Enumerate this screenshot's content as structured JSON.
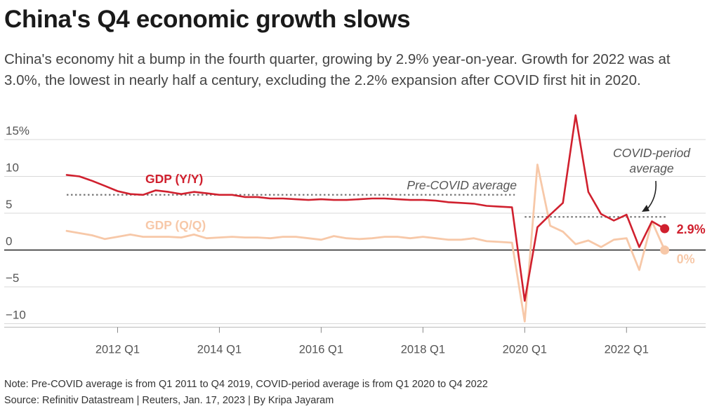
{
  "header": {
    "title": "China's Q4 economic growth slows",
    "subtitle": "China's economy hit a bump in the fourth quarter, growing by 2.9% year-on-year. Growth for 2022 was at 3.0%, the lowest in nearly half a century, excluding the 2.2% expansion after COVID first hit in 2020."
  },
  "footer": {
    "note": "Note: Pre-COVID average is from Q1 2011 to Q4 2019, COVID-period average is from Q1 2020 to Q4 2022",
    "source": "Source: Refinitiv Datastream | Reuters, Jan. 17, 2023 | By Kripa Jayaram"
  },
  "chart_data": {
    "type": "line",
    "colors": {
      "yy": "#d0202e",
      "qq": "#f7c8a8",
      "avg": "#777777",
      "zero": "#222222",
      "grid": "#d9d9d9"
    },
    "ylim": [
      -10,
      18
    ],
    "yticks": [
      {
        "value": 15,
        "label": "15%"
      },
      {
        "value": 10,
        "label": "10"
      },
      {
        "value": 5,
        "label": "5"
      },
      {
        "value": 0,
        "label": "0"
      },
      {
        "value": -5,
        "label": "−5"
      },
      {
        "value": -10,
        "label": "−10"
      }
    ],
    "x_range": [
      "2011 Q1",
      "2022 Q4"
    ],
    "xticks": [
      {
        "quarter": "2012 Q1",
        "label": "2012 Q1"
      },
      {
        "quarter": "2014 Q1",
        "label": "2014 Q1"
      },
      {
        "quarter": "2016 Q1",
        "label": "2016 Q1"
      },
      {
        "quarter": "2018 Q1",
        "label": "2018 Q1"
      },
      {
        "quarter": "2020 Q1",
        "label": "2020 Q1"
      },
      {
        "quarter": "2022 Q1",
        "label": "2022 Q1"
      }
    ],
    "series": [
      {
        "name": "GDP (Y/Y)",
        "values": [
          10.2,
          10.0,
          9.4,
          8.7,
          8.0,
          7.6,
          7.5,
          8.1,
          7.9,
          7.6,
          7.9,
          7.7,
          7.5,
          7.5,
          7.2,
          7.2,
          7.0,
          7.0,
          6.9,
          6.8,
          6.9,
          6.8,
          6.8,
          6.9,
          7.0,
          7.0,
          6.9,
          6.8,
          6.8,
          6.7,
          6.5,
          6.4,
          6.3,
          6.0,
          5.9,
          5.8,
          -6.9,
          3.1,
          4.8,
          6.4,
          18.3,
          7.9,
          4.9,
          4.0,
          4.8,
          0.4,
          3.9,
          2.9
        ],
        "end_label": "2.9%"
      },
      {
        "name": "GDP (Q/Q)",
        "values": [
          2.6,
          2.3,
          2.0,
          1.5,
          1.8,
          2.1,
          1.8,
          1.8,
          1.8,
          1.7,
          2.1,
          1.6,
          1.7,
          1.8,
          1.7,
          1.7,
          1.6,
          1.8,
          1.8,
          1.6,
          1.4,
          1.9,
          1.6,
          1.5,
          1.6,
          1.8,
          1.8,
          1.6,
          1.8,
          1.6,
          1.4,
          1.4,
          1.6,
          1.2,
          1.1,
          1.0,
          -9.7,
          11.6,
          3.3,
          2.5,
          0.8,
          1.3,
          0.4,
          1.4,
          1.6,
          -2.7,
          3.9,
          0.0
        ],
        "end_label": "0%"
      }
    ],
    "averages": [
      {
        "label": "Pre-COVID average",
        "value": 7.5,
        "from": "2011 Q1",
        "to": "2019 Q4"
      },
      {
        "label_lines": [
          "COVID-period",
          "average"
        ],
        "value": 4.5,
        "from": "2020 Q1",
        "to": "2022 Q4"
      }
    ]
  }
}
